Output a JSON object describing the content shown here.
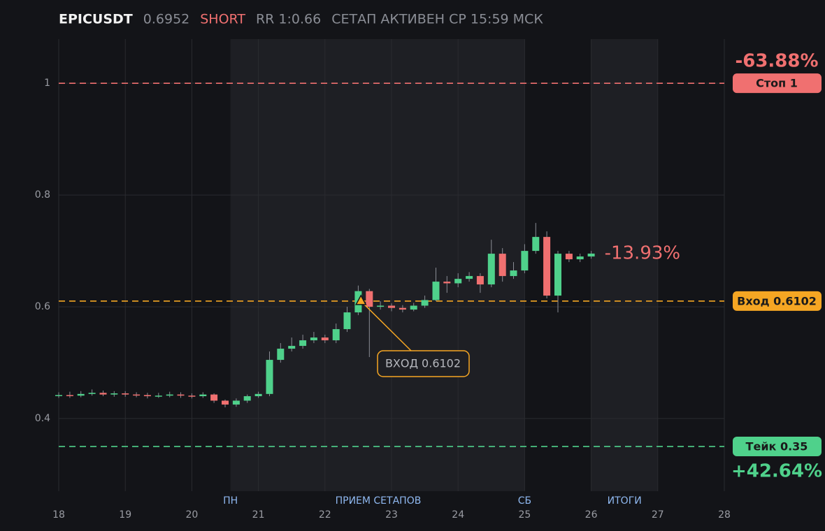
{
  "chart_data": {
    "type": "candlestick",
    "title_parts": [
      "EPICUSDT",
      "0.6952",
      "SHORT",
      "RR 1:0.66",
      "СЕТАП АКТИВЕН СР 15:59 МСК"
    ],
    "xlim": [
      18,
      28
    ],
    "xticks": [
      18,
      19,
      20,
      21,
      22,
      23,
      24,
      25,
      26,
      27,
      28
    ],
    "ylim": [
      0.27,
      1.079
    ],
    "yticks": [
      0.4,
      0.6,
      0.8,
      1
    ],
    "grid": true,
    "up_color": "#4fd18b",
    "down_color": "#f07070",
    "shaded_regions": [
      {
        "start": 20.58,
        "end": 25
      },
      {
        "start": 26,
        "end": 27
      }
    ],
    "region_labels": [
      {
        "text": "ПН",
        "x": 20.58
      },
      {
        "text": "ПРИЕМ СЕТАПОВ",
        "x": 22.8
      },
      {
        "text": "СБ",
        "x": 25
      },
      {
        "text": "ИТОГИ",
        "x": 26.5
      }
    ],
    "levels": [
      {
        "name": "Стоп 1",
        "value": 1,
        "color": "#f07070",
        "pct_label": "-63.88%"
      },
      {
        "name": "Вход 0.6102",
        "value": 0.6102,
        "color": "#f5a623"
      },
      {
        "name": "Тейк 0.35",
        "value": 0.35,
        "color": "#4fd18b",
        "pct_label": "+42.64%"
      }
    ],
    "entry_marker": {
      "x": 22.54,
      "value": 0.6102,
      "label": "ВХОД 0.6102"
    },
    "last_pnl_label": "-13.93%",
    "x": [
      18,
      18.167,
      18.333,
      18.5,
      18.667,
      18.833,
      19,
      19.167,
      19.333,
      19.5,
      19.667,
      19.833,
      20,
      20.167,
      20.333,
      20.5,
      20.667,
      20.833,
      21,
      21.167,
      21.333,
      21.5,
      21.667,
      21.833,
      22,
      22.167,
      22.333,
      22.5,
      22.667,
      22.833,
      23,
      23.167,
      23.333,
      23.5,
      23.667,
      23.833,
      24,
      24.167,
      24.333,
      24.5,
      24.667,
      24.833,
      25,
      25.167,
      25.333,
      25.5,
      25.667,
      25.833,
      26
    ],
    "open": [
      0.441,
      0.442,
      0.441,
      0.444,
      0.446,
      0.443,
      0.445,
      0.443,
      0.442,
      0.44,
      0.441,
      0.443,
      0.441,
      0.44,
      0.443,
      0.432,
      0.425,
      0.432,
      0.44,
      0.444,
      0.505,
      0.525,
      0.53,
      0.54,
      0.545,
      0.54,
      0.56,
      0.59,
      0.628,
      0.6,
      0.602,
      0.598,
      0.595,
      0.602,
      0.612,
      0.645,
      0.642,
      0.65,
      0.655,
      0.64,
      0.695,
      0.655,
      0.665,
      0.7,
      0.725,
      0.62,
      0.695,
      0.685,
      0.69
    ],
    "high": [
      0.447,
      0.448,
      0.449,
      0.452,
      0.45,
      0.449,
      0.449,
      0.447,
      0.446,
      0.446,
      0.448,
      0.447,
      0.445,
      0.447,
      0.445,
      0.434,
      0.436,
      0.443,
      0.448,
      0.52,
      0.535,
      0.545,
      0.55,
      0.555,
      0.55,
      0.57,
      0.6,
      0.638,
      0.632,
      0.61,
      0.606,
      0.603,
      0.607,
      0.62,
      0.67,
      0.655,
      0.66,
      0.662,
      0.66,
      0.72,
      0.705,
      0.68,
      0.712,
      0.75,
      0.735,
      0.7,
      0.7,
      0.695,
      0.7
    ],
    "low": [
      0.437,
      0.437,
      0.438,
      0.441,
      0.44,
      0.439,
      0.439,
      0.438,
      0.436,
      0.437,
      0.438,
      0.437,
      0.436,
      0.437,
      0.428,
      0.42,
      0.421,
      0.428,
      0.437,
      0.44,
      0.5,
      0.52,
      0.525,
      0.535,
      0.535,
      0.535,
      0.555,
      0.585,
      0.51,
      0.595,
      0.592,
      0.59,
      0.592,
      0.598,
      0.61,
      0.625,
      0.635,
      0.645,
      0.625,
      0.635,
      0.645,
      0.65,
      0.66,
      0.695,
      0.615,
      0.59,
      0.68,
      0.68,
      0.686
    ],
    "close": [
      0.442,
      0.441,
      0.444,
      0.446,
      0.443,
      0.445,
      0.443,
      0.442,
      0.44,
      0.441,
      0.443,
      0.441,
      0.44,
      0.443,
      0.432,
      0.425,
      0.432,
      0.44,
      0.444,
      0.505,
      0.525,
      0.53,
      0.54,
      0.545,
      0.54,
      0.56,
      0.59,
      0.628,
      0.6,
      0.602,
      0.598,
      0.595,
      0.602,
      0.612,
      0.645,
      0.642,
      0.65,
      0.655,
      0.64,
      0.695,
      0.655,
      0.665,
      0.7,
      0.725,
      0.62,
      0.695,
      0.685,
      0.69,
      0.6952
    ]
  }
}
